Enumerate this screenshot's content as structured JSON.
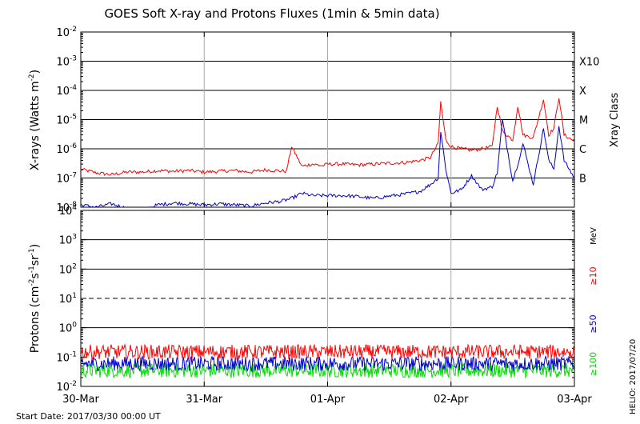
{
  "chart_data": [
    {
      "type": "line",
      "panel": "xray",
      "title": "GOES Soft X-ray and Protons Fluxes   (1min & 5min data)",
      "ylabel": {
        "base": "X-rays (Watts m",
        "exp": "-2",
        "close": ")"
      },
      "yscale": "log",
      "ylim": [
        1e-08,
        0.01
      ],
      "yticks": [
        {
          "value": 1e-08,
          "base": "10",
          "exp": "-8"
        },
        {
          "value": 1e-07,
          "base": "10",
          "exp": "-7"
        },
        {
          "value": 1e-06,
          "base": "10",
          "exp": "-6"
        },
        {
          "value": 1e-05,
          "base": "10",
          "exp": "-5"
        },
        {
          "value": 0.0001,
          "base": "10",
          "exp": "-4"
        },
        {
          "value": 0.001,
          "base": "10",
          "exp": "-3"
        },
        {
          "value": 0.01,
          "base": "10",
          "exp": "-2"
        }
      ],
      "xrayClassLabel": "Xray Class",
      "classes": [
        {
          "label": "B",
          "value": 1e-07
        },
        {
          "label": "C",
          "value": 1e-06
        },
        {
          "label": "M",
          "value": 1e-05
        },
        {
          "label": "X",
          "value": 0.0001
        },
        {
          "label": "X10",
          "value": 0.001
        }
      ],
      "hgrid": [
        1e-07,
        1e-06,
        1e-05,
        0.0001,
        0.001
      ],
      "series": [
        {
          "color": "#ff0000",
          "x": [
            "2017-03-30T00:00",
            "2017-03-30T03:00",
            "2017-03-30T06:00",
            "2017-03-30T09:00",
            "2017-03-30T12:00",
            "2017-03-30T15:00",
            "2017-03-30T18:00",
            "2017-03-30T21:00",
            "2017-03-31T00:00",
            "2017-03-31T03:00",
            "2017-03-31T06:00",
            "2017-03-31T09:00",
            "2017-03-31T12:00",
            "2017-03-31T16:00",
            "2017-03-31T17:00",
            "2017-03-31T19:00",
            "2017-03-31T21:00",
            "2017-03-31T23:00",
            "2017-04-01T00:00",
            "2017-04-01T03:00",
            "2017-04-01T06:00",
            "2017-04-01T09:00",
            "2017-04-01T12:00",
            "2017-04-01T15:00",
            "2017-04-01T18:00",
            "2017-04-01T20:00",
            "2017-04-01T21:30",
            "2017-04-01T22:00",
            "2017-04-01T23:00",
            "2017-04-02T00:00",
            "2017-04-02T02:00",
            "2017-04-02T04:00",
            "2017-04-02T06:00",
            "2017-04-02T08:00",
            "2017-04-02T09:00",
            "2017-04-02T10:00",
            "2017-04-02T12:00",
            "2017-04-02T13:00",
            "2017-04-02T14:00",
            "2017-04-02T16:00",
            "2017-04-02T18:00",
            "2017-04-02T19:00",
            "2017-04-02T20:00",
            "2017-04-02T21:00",
            "2017-04-02T22:00",
            "2017-04-03T00:00"
          ],
          "y": [
            2e-07,
            1.5e-07,
            1.3e-07,
            1.6e-07,
            1.6e-07,
            1.8e-07,
            1.7e-07,
            1.8e-07,
            1.6e-07,
            1.7e-07,
            1.8e-07,
            1.6e-07,
            1.9e-07,
            1.7e-07,
            1.2e-06,
            2.5e-07,
            3e-07,
            2.6e-07,
            3e-07,
            3e-07,
            2.8e-07,
            3e-07,
            3.2e-07,
            3.4e-07,
            4e-07,
            5e-07,
            1.5e-06,
            4e-05,
            2e-06,
            1.2e-06,
            1e-06,
            9e-07,
            1e-06,
            1.2e-06,
            3e-05,
            4e-06,
            2e-06,
            3e-05,
            3e-06,
            2.4e-06,
            5e-05,
            3e-06,
            5e-06,
            6e-05,
            3e-06,
            1.8e-06
          ]
        },
        {
          "color": "#0000cc",
          "x": [
            "2017-03-30T00:00",
            "2017-03-30T03:00",
            "2017-03-30T06:00",
            "2017-03-30T09:00",
            "2017-03-30T12:00",
            "2017-03-30T15:00",
            "2017-03-30T18:00",
            "2017-03-30T21:00",
            "2017-03-31T00:00",
            "2017-03-31T03:00",
            "2017-03-31T06:00",
            "2017-03-31T09:00",
            "2017-03-31T12:00",
            "2017-03-31T15:00",
            "2017-03-31T17:00",
            "2017-03-31T19:00",
            "2017-03-31T21:00",
            "2017-04-01T00:00",
            "2017-04-01T03:00",
            "2017-04-01T06:00",
            "2017-04-01T09:00",
            "2017-04-01T12:00",
            "2017-04-01T15:00",
            "2017-04-01T18:00",
            "2017-04-01T20:00",
            "2017-04-01T21:30",
            "2017-04-01T22:00",
            "2017-04-01T23:00",
            "2017-04-02T00:00",
            "2017-04-02T02:00",
            "2017-04-02T04:00",
            "2017-04-02T06:00",
            "2017-04-02T08:00",
            "2017-04-02T09:00",
            "2017-04-02T10:00",
            "2017-04-02T12:00",
            "2017-04-02T13:00",
            "2017-04-02T14:00",
            "2017-04-02T16:00",
            "2017-04-02T18:00",
            "2017-04-02T19:00",
            "2017-04-02T20:00",
            "2017-04-02T21:00",
            "2017-04-02T22:00",
            "2017-04-03T00:00"
          ],
          "y": [
            1.2e-08,
            1e-08,
            1.3e-08,
            9e-09,
            8e-09,
            1.2e-08,
            1.4e-08,
            1.3e-08,
            1.2e-08,
            1.3e-08,
            1.2e-08,
            1.1e-08,
            1.4e-08,
            1.6e-08,
            2e-08,
            3e-08,
            2.5e-08,
            2.5e-08,
            2.5e-08,
            2.3e-08,
            2e-08,
            2.4e-08,
            2.8e-08,
            3.5e-08,
            6e-08,
            1e-07,
            4e-06,
            2e-07,
            3e-08,
            4e-08,
            1.2e-07,
            4e-08,
            5e-08,
            1.5e-07,
            1e-05,
            8e-08,
            3e-07,
            1.5e-06,
            6e-08,
            5e-06,
            4e-07,
            2e-07,
            6e-06,
            4e-07,
            1e-07
          ]
        }
      ]
    },
    {
      "type": "line",
      "panel": "protons",
      "ylabel": {
        "text": "Protons (cm^-2 s^-1 sr^-1)"
      },
      "yscale": "log",
      "ylim": [
        0.01,
        10000
      ],
      "yticks": [
        {
          "value": 0.01,
          "base": "10",
          "exp": "-2"
        },
        {
          "value": 0.1,
          "base": "10",
          "exp": "-1"
        },
        {
          "value": 1,
          "base": "10",
          "exp": "0"
        },
        {
          "value": 10,
          "base": "10",
          "exp": "1"
        },
        {
          "value": 100,
          "base": "10",
          "exp": "2"
        },
        {
          "value": 1000,
          "base": "10",
          "exp": "3"
        },
        {
          "value": 10000,
          "base": "10",
          "exp": "4"
        }
      ],
      "hgrid": [
        1,
        100,
        1000
      ],
      "dashed": [
        10
      ],
      "unitLabel": "MeV",
      "series": [
        {
          "name": "≥10",
          "color": "#ff0000",
          "level": 0.15
        },
        {
          "name": "≥50",
          "color": "#0000cc",
          "level": 0.06
        },
        {
          "name": "≥100",
          "color": "#00dd00",
          "level": 0.035
        }
      ]
    }
  ],
  "xaxis": {
    "start": "2017-03-30T00:00",
    "end": "2017-04-03T00:00",
    "ticks": [
      {
        "value": "2017-03-30T00:00",
        "label": "30-Mar"
      },
      {
        "value": "2017-03-31T00:00",
        "label": "31-Mar"
      },
      {
        "value": "2017-04-01T00:00",
        "label": "01-Apr"
      },
      {
        "value": "2017-04-02T00:00",
        "label": "02-Apr"
      },
      {
        "value": "2017-04-03T00:00",
        "label": "03-Apr"
      }
    ]
  },
  "footer": {
    "startDate": "Start Date: 2017/03/30 00:00 UT",
    "credit": "HELIO: 2017/07/20"
  },
  "colors": {
    "grid": "#aaaaaa",
    "frame": "#000000"
  }
}
